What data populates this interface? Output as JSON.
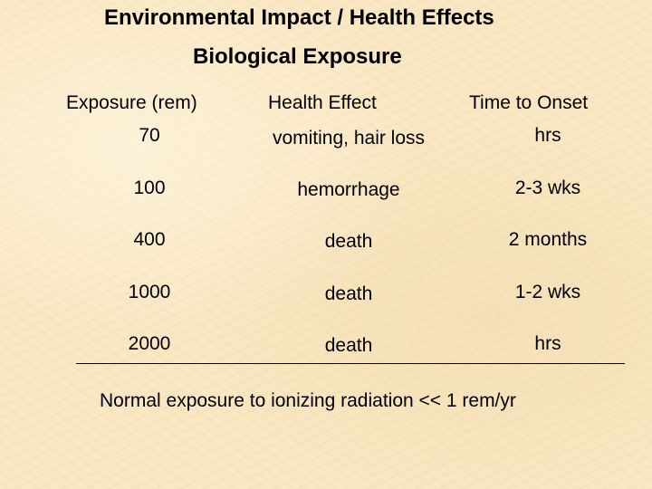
{
  "slide": {
    "title": "Environmental Impact / Health Effects",
    "subtitle": "Biological Exposure",
    "table": {
      "headers": [
        "Exposure (rem)",
        "Health Effect",
        "Time to Onset"
      ],
      "rows": [
        {
          "exposure": "70",
          "effect": "vomiting, hair loss",
          "onset": "hrs"
        },
        {
          "exposure": "100",
          "effect": "hemorrhage",
          "onset": "2-3 wks"
        },
        {
          "exposure": "400",
          "effect": "death",
          "onset": "2 months"
        },
        {
          "exposure": "1000",
          "effect": "death",
          "onset": "1-2 wks"
        },
        {
          "exposure": "2000",
          "effect": "death",
          "onset": "hrs"
        }
      ]
    },
    "footer": "Normal exposure to ionizing radiation << 1 rem/yr"
  },
  "colors": {
    "background": "#f9e6c0",
    "text": "#000000"
  }
}
